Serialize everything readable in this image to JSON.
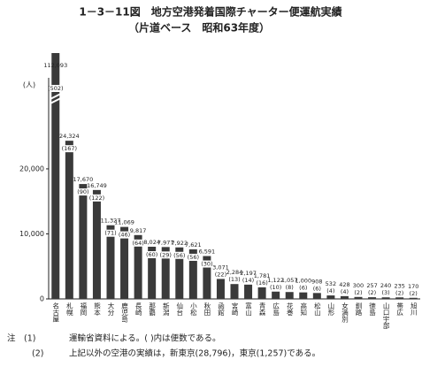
{
  "chart_data": {
    "type": "bar",
    "title": "1－3－11図　地方空港発着国際チャーター便運航実績",
    "subtitle": "（片道ベース　昭和63年度）",
    "y_label": "(人)",
    "categories": [
      "名古屋",
      "札幌",
      "福岡",
      "熊本",
      "大分",
      "鹿児島",
      "長崎",
      "那覇",
      "新潟",
      "仙台",
      "小松",
      "秋田",
      "函館",
      "宮崎",
      "富山",
      "青森",
      "広島",
      "花巻",
      "高知",
      "松山",
      "山形",
      "女満別",
      "釧路",
      "徳島",
      "山口宇部",
      "帯広",
      "旭川"
    ],
    "values": [
      112093,
      24324,
      17670,
      16749,
      11327,
      11069,
      9817,
      8024,
      7977,
      7922,
      7621,
      6591,
      3071,
      2284,
      2197,
      1781,
      1122,
      1057,
      1000,
      908,
      532,
      428,
      300,
      257,
      240,
      235,
      170
    ],
    "value_labels": [
      "112,093",
      "24,324",
      "17,670",
      "16,749",
      "11,327",
      "11,069",
      "9,817",
      "8,024",
      "7,977",
      "7,922",
      "7,621",
      "6,591",
      "3,071",
      "2,284",
      "2,197",
      "1,781",
      "1,122",
      "1,057",
      "1,000",
      "908",
      "532",
      "428",
      "300",
      "257",
      "240",
      "235",
      "170"
    ],
    "flight_labels": [
      "(502)",
      "(167)",
      "(90)",
      "(122)",
      "(71)",
      "(46)",
      "(64)",
      "(60)",
      "(29)",
      "(56)",
      "(56)",
      "(30)",
      "(22)",
      "(13)",
      "(14)",
      "(16)",
      "(10)",
      "(8)",
      "(6)",
      "(6)",
      "(4)",
      "(4)",
      "(2)",
      "(2)",
      "(3)",
      "(2)",
      "(2)"
    ],
    "color": "#3a3a3a",
    "ylim": [
      0,
      34000
    ],
    "yticks": [
      0,
      {
        "value": 10000,
        "label": "10,000"
      },
      {
        "value": 20000,
        "label": "20,000"
      }
    ],
    "notes": [
      {
        "marker": "注　(1)",
        "text": "運輸省資料による。( )内は便数である。"
      },
      {
        "marker": "(2)",
        "text": "上記以外の空港の実績は，新東京(28,796)，東京(1,257)である。"
      }
    ]
  }
}
